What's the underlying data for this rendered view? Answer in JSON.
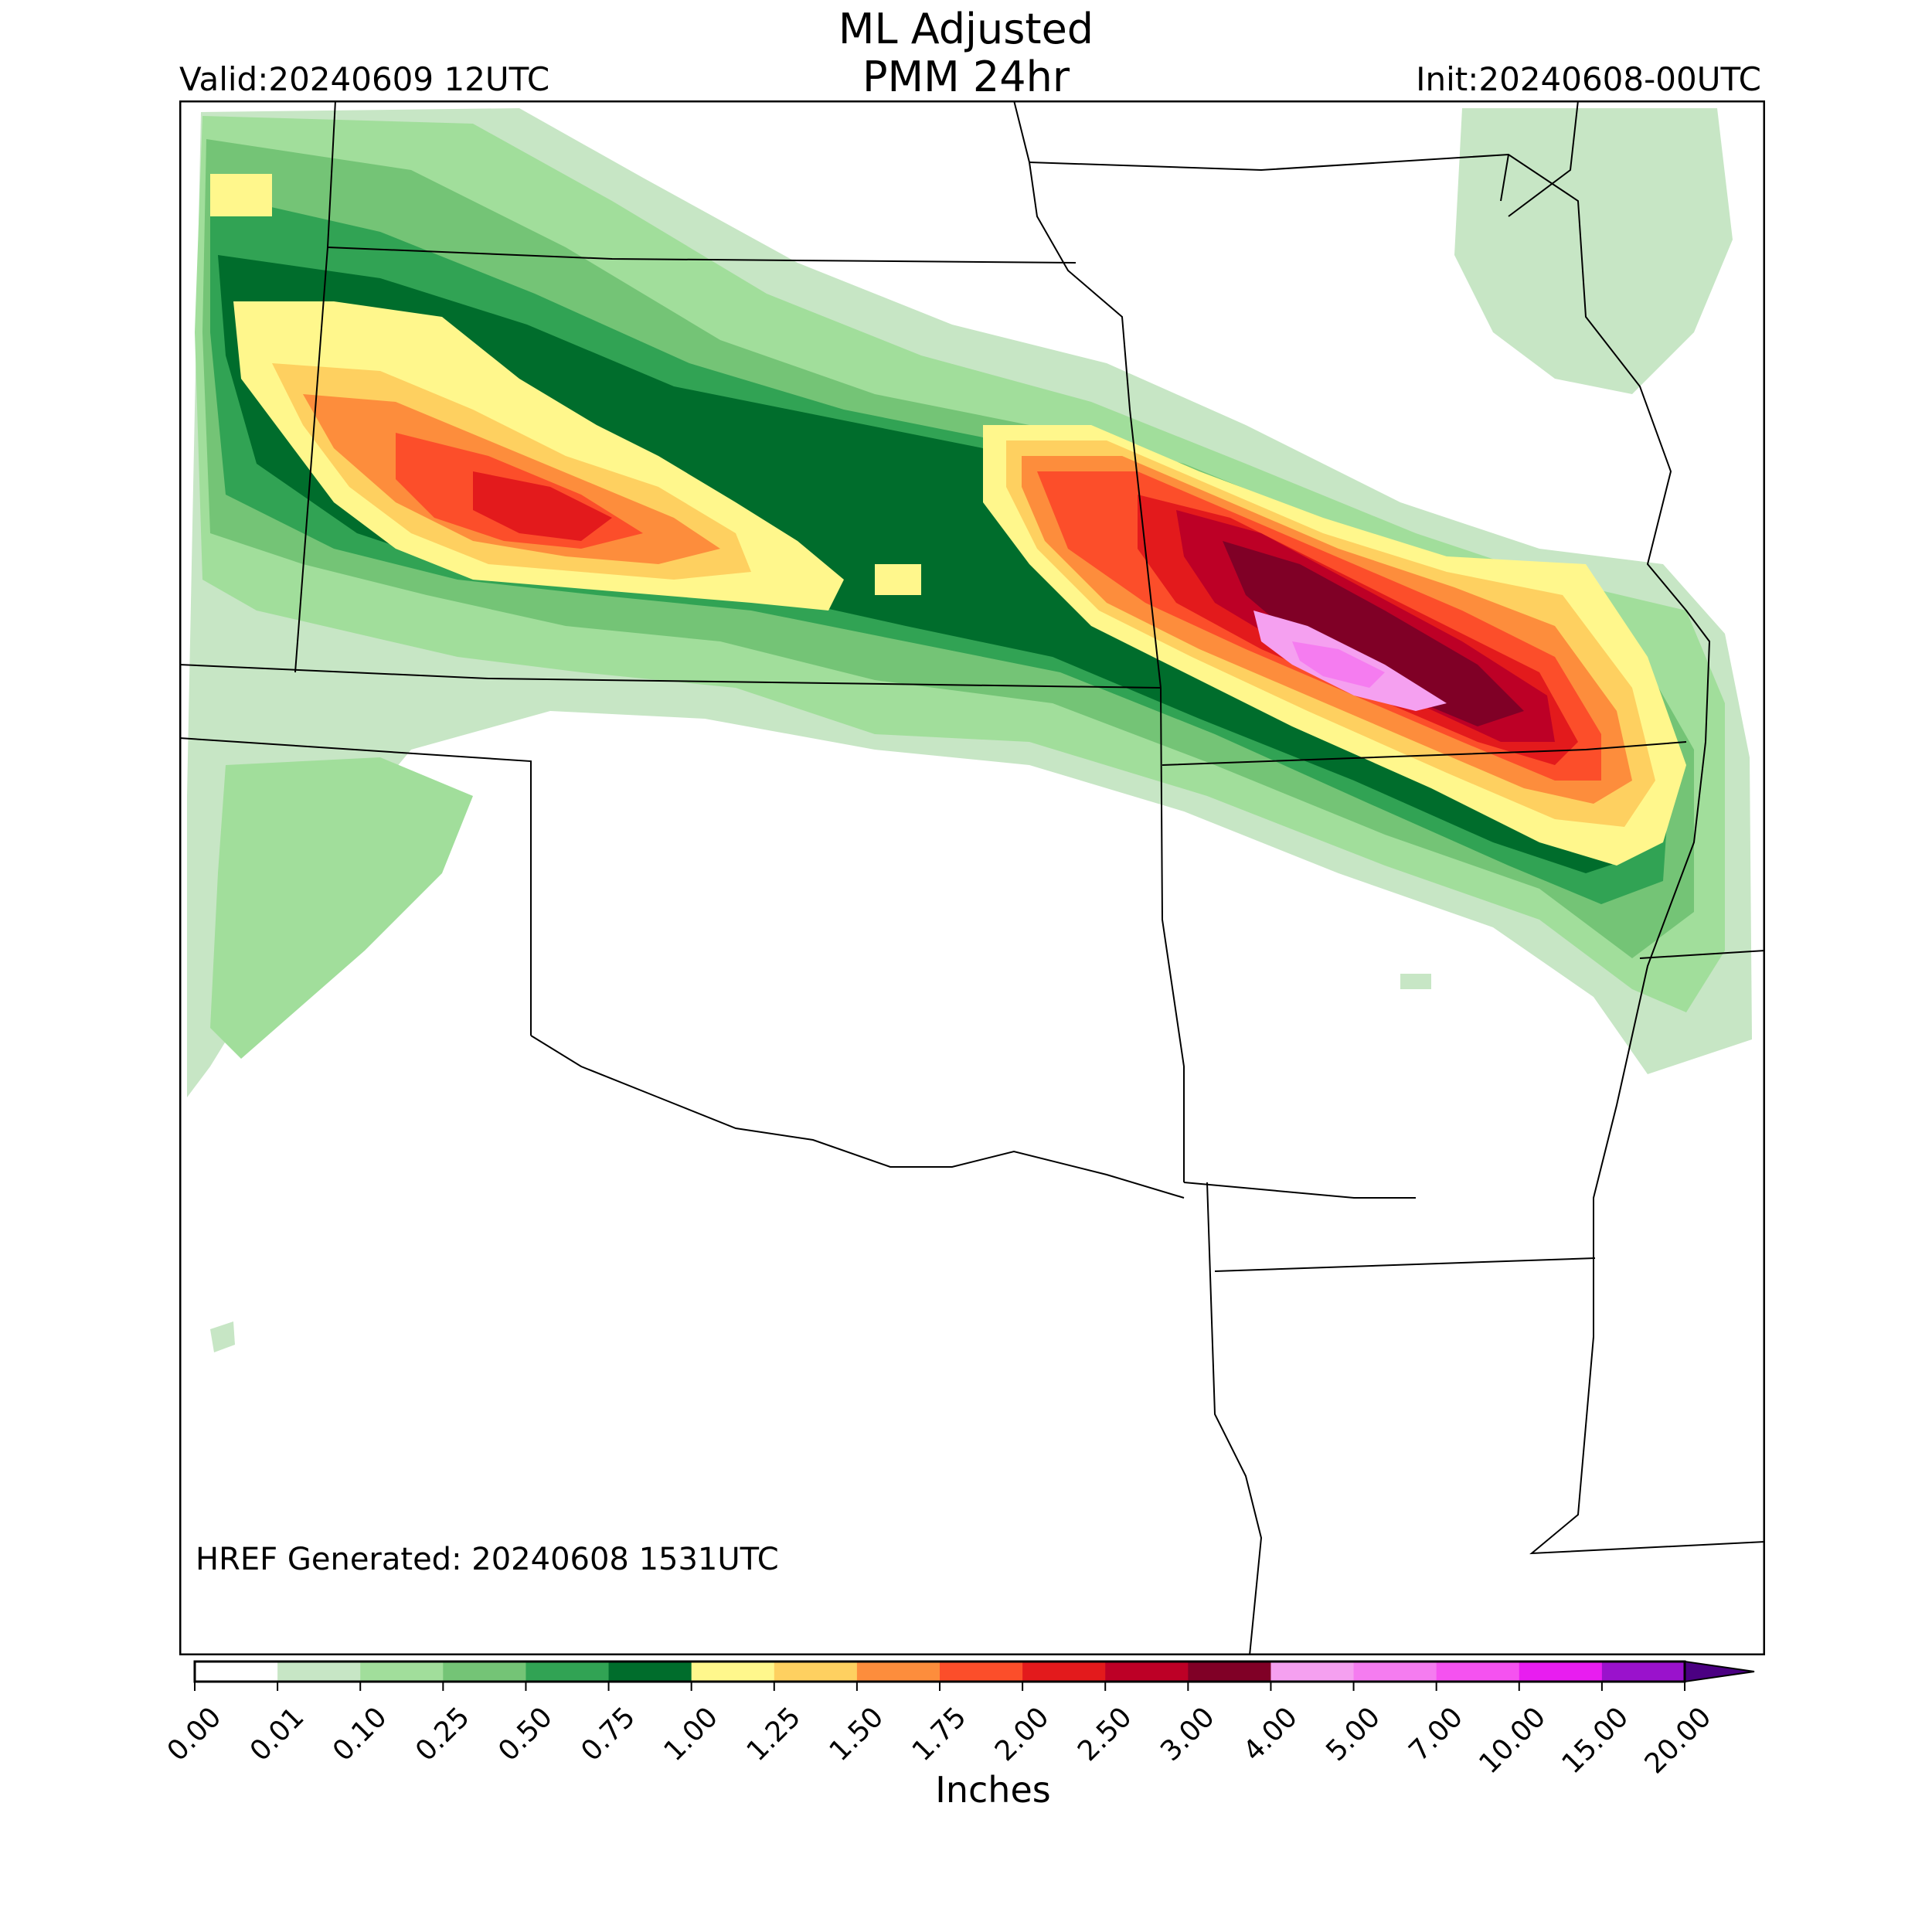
{
  "header": {
    "title_line1": "ML Adjusted",
    "title_line2": "PMM 24hr",
    "valid": "Valid:20240609 12UTC",
    "init": "Init:20240608-00UTC"
  },
  "footer_note": "HREF Generated: 20240608 1531UTC",
  "colorbar": {
    "units": "Inches",
    "ticks": [
      "0.00",
      "0.01",
      "0.10",
      "0.25",
      "0.50",
      "0.75",
      "1.00",
      "1.25",
      "1.50",
      "1.75",
      "2.00",
      "2.50",
      "3.00",
      "4.00",
      "5.00",
      "7.00",
      "10.00",
      "15.00",
      "20.00"
    ],
    "colors": [
      "#ffffff",
      "#c7e6c5",
      "#a1de9b",
      "#74c476",
      "#31a354",
      "#006d2c",
      "#fff78c",
      "#fed060",
      "#fd8d3c",
      "#fc4e2a",
      "#e31a1c",
      "#bd0026",
      "#800026",
      "#f5a0f0",
      "#f57cf0",
      "#f552f0",
      "#e81df0",
      "#9a12cc"
    ],
    "extend_color": "#4b0082"
  },
  "colors": {
    "frame": "#000000",
    "state_lines": "#000000"
  }
}
